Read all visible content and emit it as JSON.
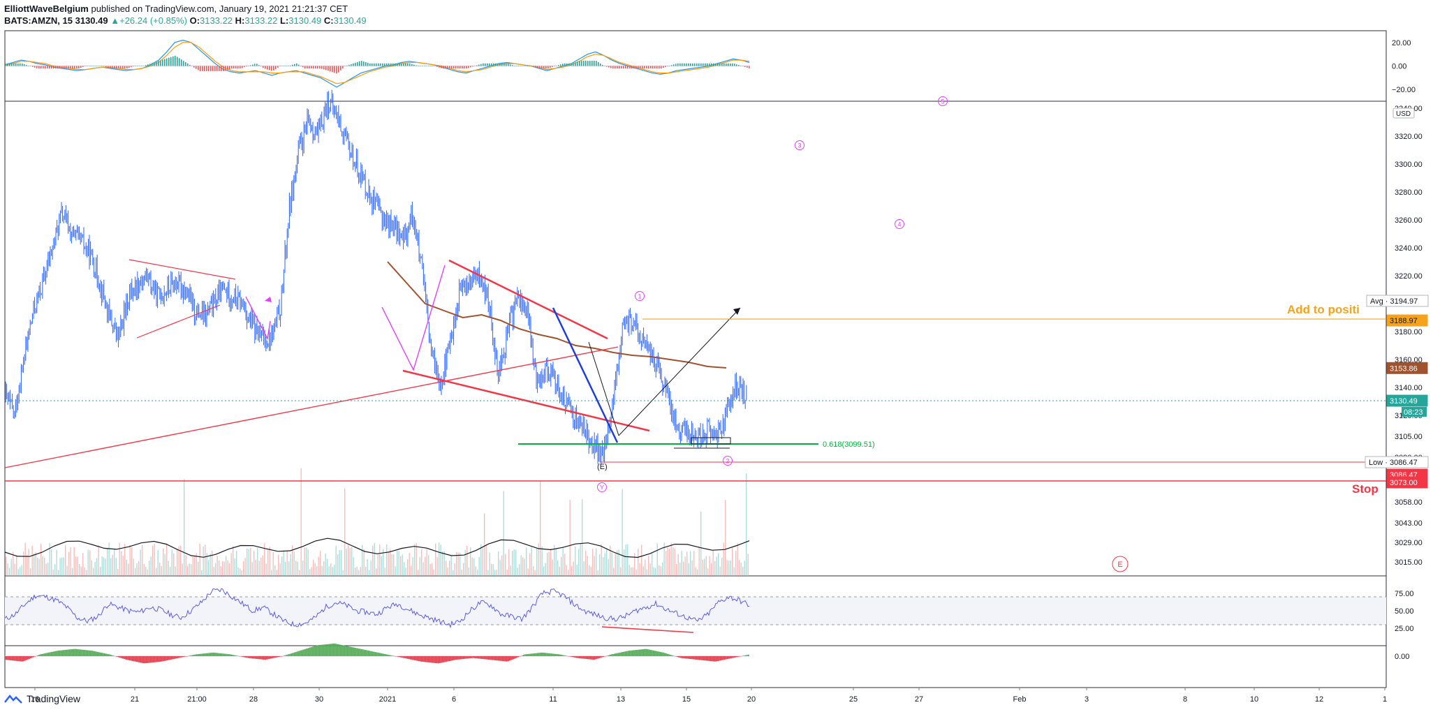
{
  "header": {
    "publisher": "ElliottWaveBelgium",
    "published_text": "published on TradingView.com, January 19, 2021 21:21:37 CET",
    "symbol": "BATS:AMZN, 15",
    "last": "3130.49",
    "change": "+26.24 (+0.85%)",
    "o_label": "O:",
    "o_value": "3133.22",
    "h_label": "H:",
    "h_value": "3133.22",
    "l_label": "L:",
    "l_value": "3130.49",
    "c_label": "C:",
    "c_value": "3130.49"
  },
  "footer": {
    "brand": "TradingView"
  },
  "colors": {
    "price_bar": "#2962ff",
    "ma": "#a0522d",
    "trendline": "#f23645",
    "pattern": "#e040fb",
    "fib": "#00b33c",
    "add_line": "#f7a21b",
    "up": "#26a69a",
    "down": "#ef5350",
    "rsi": "#5b5bdc"
  },
  "chart_data": [
    {
      "type": "line",
      "panel": "macd",
      "title": "",
      "ylim": [
        -30,
        30
      ],
      "yticks": [
        "20.00",
        "0.00",
        "−20.00"
      ],
      "series": [
        {
          "values": [
            1,
            3,
            5,
            4,
            2,
            1,
            -1,
            -2,
            -3,
            -4,
            -3,
            -2,
            -1,
            -2,
            -3,
            -4,
            -3,
            -2,
            1,
            5,
            12,
            20,
            22,
            20,
            14,
            8,
            2,
            -3,
            -5,
            -6,
            -5,
            -4,
            -6,
            -8,
            -6,
            -5,
            -4,
            -6,
            -8,
            -10,
            -14,
            -18,
            -14,
            -10,
            -6,
            -4,
            -2,
            0,
            1,
            3,
            4,
            3,
            2,
            1,
            -1,
            -3,
            -5,
            -6,
            -4,
            -2,
            0,
            2,
            3,
            2,
            1,
            0,
            -2,
            -4,
            -2,
            0,
            2,
            6,
            10,
            12,
            9,
            5,
            2,
            0,
            -2,
            -4,
            -6,
            -7,
            -6,
            -4,
            -3,
            -2,
            -1,
            0,
            2,
            4,
            6,
            5,
            3
          ]
        },
        {
          "values": [
            0,
            2,
            4,
            4,
            3,
            2,
            0,
            -1,
            -2,
            -3,
            -3,
            -2,
            -1,
            -1,
            -2,
            -3,
            -3,
            -2,
            0,
            3,
            9,
            16,
            20,
            20,
            16,
            10,
            4,
            -1,
            -4,
            -5,
            -5,
            -5,
            -5,
            -6,
            -6,
            -5,
            -5,
            -5,
            -7,
            -9,
            -12,
            -15,
            -14,
            -11,
            -8,
            -5,
            -3,
            -1,
            0,
            2,
            3,
            3,
            2,
            1,
            0,
            -2,
            -4,
            -5,
            -4,
            -3,
            -1,
            1,
            2,
            2,
            1,
            0,
            -1,
            -3,
            -2,
            -1,
            1,
            4,
            8,
            10,
            9,
            6,
            3,
            1,
            -1,
            -3,
            -5,
            -6,
            -6,
            -5,
            -4,
            -3,
            -2,
            -1,
            1,
            3,
            5,
            5,
            4
          ]
        }
      ]
    },
    {
      "type": "bar",
      "panel": "price",
      "title": "",
      "ylim": [
        3005,
        3345
      ],
      "yticks": [
        "3340.00",
        "3320.00",
        "3300.00",
        "3280.00",
        "3260.00",
        "3240.00",
        "3220.00",
        "3200.00",
        "3180.00",
        "3160.00",
        "3140.00",
        "3120.00",
        "3105.00",
        "3090.00",
        "3073.00",
        "3058.00",
        "3043.00",
        "3029.00",
        "3015.00"
      ],
      "currency": "USD",
      "x_ticks": [
        "16",
        "21",
        "21:00",
        "28",
        "30",
        "2021",
        "6",
        "11",
        "13",
        "15",
        "20",
        "25",
        "27",
        "Feb",
        "3",
        "8",
        "10",
        "12",
        "1"
      ],
      "close_path": [
        3135,
        3120,
        3160,
        3195,
        3215,
        3240,
        3265,
        3250,
        3245,
        3235,
        3215,
        3190,
        3175,
        3205,
        3215,
        3220,
        3205,
        3210,
        3215,
        3210,
        3195,
        3190,
        3200,
        3210,
        3205,
        3200,
        3185,
        3175,
        3175,
        3195,
        3270,
        3310,
        3330,
        3320,
        3345,
        3335,
        3315,
        3300,
        3285,
        3270,
        3260,
        3255,
        3245,
        3265,
        3220,
        3160,
        3145,
        3175,
        3210,
        3215,
        3220,
        3200,
        3150,
        3180,
        3205,
        3195,
        3145,
        3155,
        3145,
        3130,
        3120,
        3110,
        3100,
        3090,
        3125,
        3180,
        3188,
        3175,
        3165,
        3150,
        3130,
        3110,
        3108,
        3105,
        3110,
        3105,
        3120,
        3140,
        3135
      ],
      "ma_path": [
        3230,
        3215,
        3200,
        3195,
        3190,
        3192,
        3188,
        3182,
        3178,
        3175,
        3170,
        3168,
        3165,
        3163,
        3162,
        3160,
        3158,
        3155,
        3154
      ],
      "price_labels": {
        "avg": "Avg · 3194.97",
        "add": "3188.97",
        "ma": "3153.86",
        "last": "3130.49",
        "countdown": "08:23",
        "low": "Low · 3086.47",
        "stop_low": "3086.47",
        "stop": "3073.00"
      },
      "annotations": {
        "fib": "0.618(3099.51)",
        "add_text": "Add to positi",
        "stop_text": "Stop",
        "wave_e_paren": "(E)",
        "waves": [
          "1",
          "2",
          "3",
          "4",
          "5",
          "Y",
          "E"
        ]
      }
    },
    {
      "type": "line",
      "panel": "rsi",
      "title": "",
      "ylim": [
        0,
        100
      ],
      "yticks": [
        "75.00",
        "50.00",
        "25.00"
      ],
      "series": [
        {
          "values": [
            38,
            45,
            60,
            72,
            70,
            65,
            55,
            40,
            35,
            42,
            60,
            55,
            50,
            48,
            55,
            52,
            45,
            40,
            50,
            62,
            78,
            80,
            70,
            60,
            50,
            55,
            45,
            35,
            30,
            32,
            40,
            55,
            62,
            58,
            50,
            48,
            45,
            55,
            60,
            52,
            45,
            40,
            35,
            30,
            35,
            50,
            62,
            58,
            45,
            42,
            38,
            55,
            75,
            78,
            72,
            60,
            50,
            45,
            40,
            38,
            42,
            50,
            55,
            60,
            52,
            46,
            40,
            35,
            45,
            62,
            70,
            65,
            58
          ]
        }
      ]
    },
    {
      "type": "bar",
      "panel": "momentum",
      "title": "",
      "yticks": [
        "0.00"
      ],
      "values": [
        -2,
        -3,
        1,
        3,
        4,
        3,
        1,
        -2,
        -4,
        -3,
        -1,
        1,
        2,
        1,
        -1,
        -2,
        0,
        3,
        6,
        7,
        5,
        3,
        1,
        -1,
        -3,
        -4,
        -2,
        -1,
        -2,
        -3,
        1,
        2,
        1,
        -1,
        -2,
        1,
        3,
        4,
        2,
        -1,
        -2,
        -3,
        -1,
        1
      ]
    }
  ]
}
